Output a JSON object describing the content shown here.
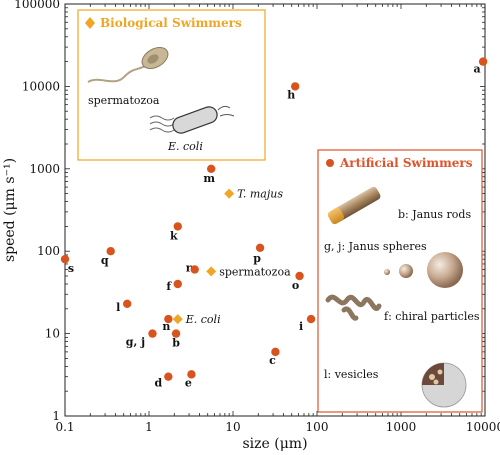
{
  "colors": {
    "artificial": "#d9531e",
    "biological": "#f0a623",
    "bio_box": "#f0a623",
    "art_box": "#e0522a"
  },
  "chart_data": {
    "type": "scatter",
    "xlabel": "size (μm)",
    "ylabel": "speed (μm s⁻¹)",
    "xscale": "log",
    "yscale": "log",
    "xlim": [
      0.1,
      10000
    ],
    "ylim": [
      1,
      100000
    ],
    "x_ticks": [
      {
        "value": 0.1,
        "label": "0.1"
      },
      {
        "value": 1,
        "label": "1"
      },
      {
        "value": 10,
        "label": "10"
      },
      {
        "value": 100,
        "label": "100"
      },
      {
        "value": 1000,
        "label": "1000"
      },
      {
        "value": 10000,
        "label": "10000"
      }
    ],
    "y_ticks": [
      {
        "value": 1,
        "label": "1"
      },
      {
        "value": 10,
        "label": "10"
      },
      {
        "value": 100,
        "label": "100"
      },
      {
        "value": 1000,
        "label": "1000"
      },
      {
        "value": 10000,
        "label": "10000"
      },
      {
        "value": 100000,
        "label": "100000"
      }
    ],
    "series": [
      {
        "name": "Artificial Swimmers",
        "marker": "circle",
        "points": [
          {
            "label": "a",
            "x": 9500,
            "y": 20000
          },
          {
            "label": "h",
            "x": 55,
            "y": 10000
          },
          {
            "label": "m",
            "x": 5.5,
            "y": 1000
          },
          {
            "label": "k",
            "x": 2.2,
            "y": 200
          },
          {
            "label": "p",
            "x": 21,
            "y": 110
          },
          {
            "label": "q",
            "x": 0.35,
            "y": 100
          },
          {
            "label": "s",
            "x": 0.1,
            "y": 80
          },
          {
            "label": "r",
            "x": 3.5,
            "y": 60
          },
          {
            "label": "o",
            "x": 62,
            "y": 50
          },
          {
            "label": "f",
            "x": 2.2,
            "y": 40
          },
          {
            "label": "l",
            "x": 0.55,
            "y": 23
          },
          {
            "label": "n",
            "x": 1.7,
            "y": 15
          },
          {
            "label": "i",
            "x": 85,
            "y": 15
          },
          {
            "label": "g, j",
            "x": 1.1,
            "y": 10
          },
          {
            "label": "b",
            "x": 2.1,
            "y": 10
          },
          {
            "label": "c",
            "x": 32,
            "y": 6
          },
          {
            "label": "d",
            "x": 1.7,
            "y": 3
          },
          {
            "label": "e",
            "x": 3.2,
            "y": 3.2
          }
        ]
      },
      {
        "name": "Biological Swimmers",
        "marker": "diamond",
        "points": [
          {
            "label": "T. majus",
            "x": 9,
            "y": 500
          },
          {
            "label": "spermatozoa",
            "x": 5.5,
            "y": 57
          },
          {
            "label": "E. coli",
            "x": 2.2,
            "y": 15
          }
        ]
      }
    ]
  },
  "insets": {
    "biological": {
      "title": "Biological Swimmers",
      "items": [
        {
          "label": "spermatozoa"
        },
        {
          "label": "E. coli"
        }
      ]
    },
    "artificial": {
      "title": "Artificial Swimmers",
      "items": [
        {
          "label": "b: Janus rods"
        },
        {
          "label": "g, j: Janus spheres"
        },
        {
          "label": "f: chiral particles"
        },
        {
          "label": "l: vesicles"
        }
      ]
    }
  }
}
